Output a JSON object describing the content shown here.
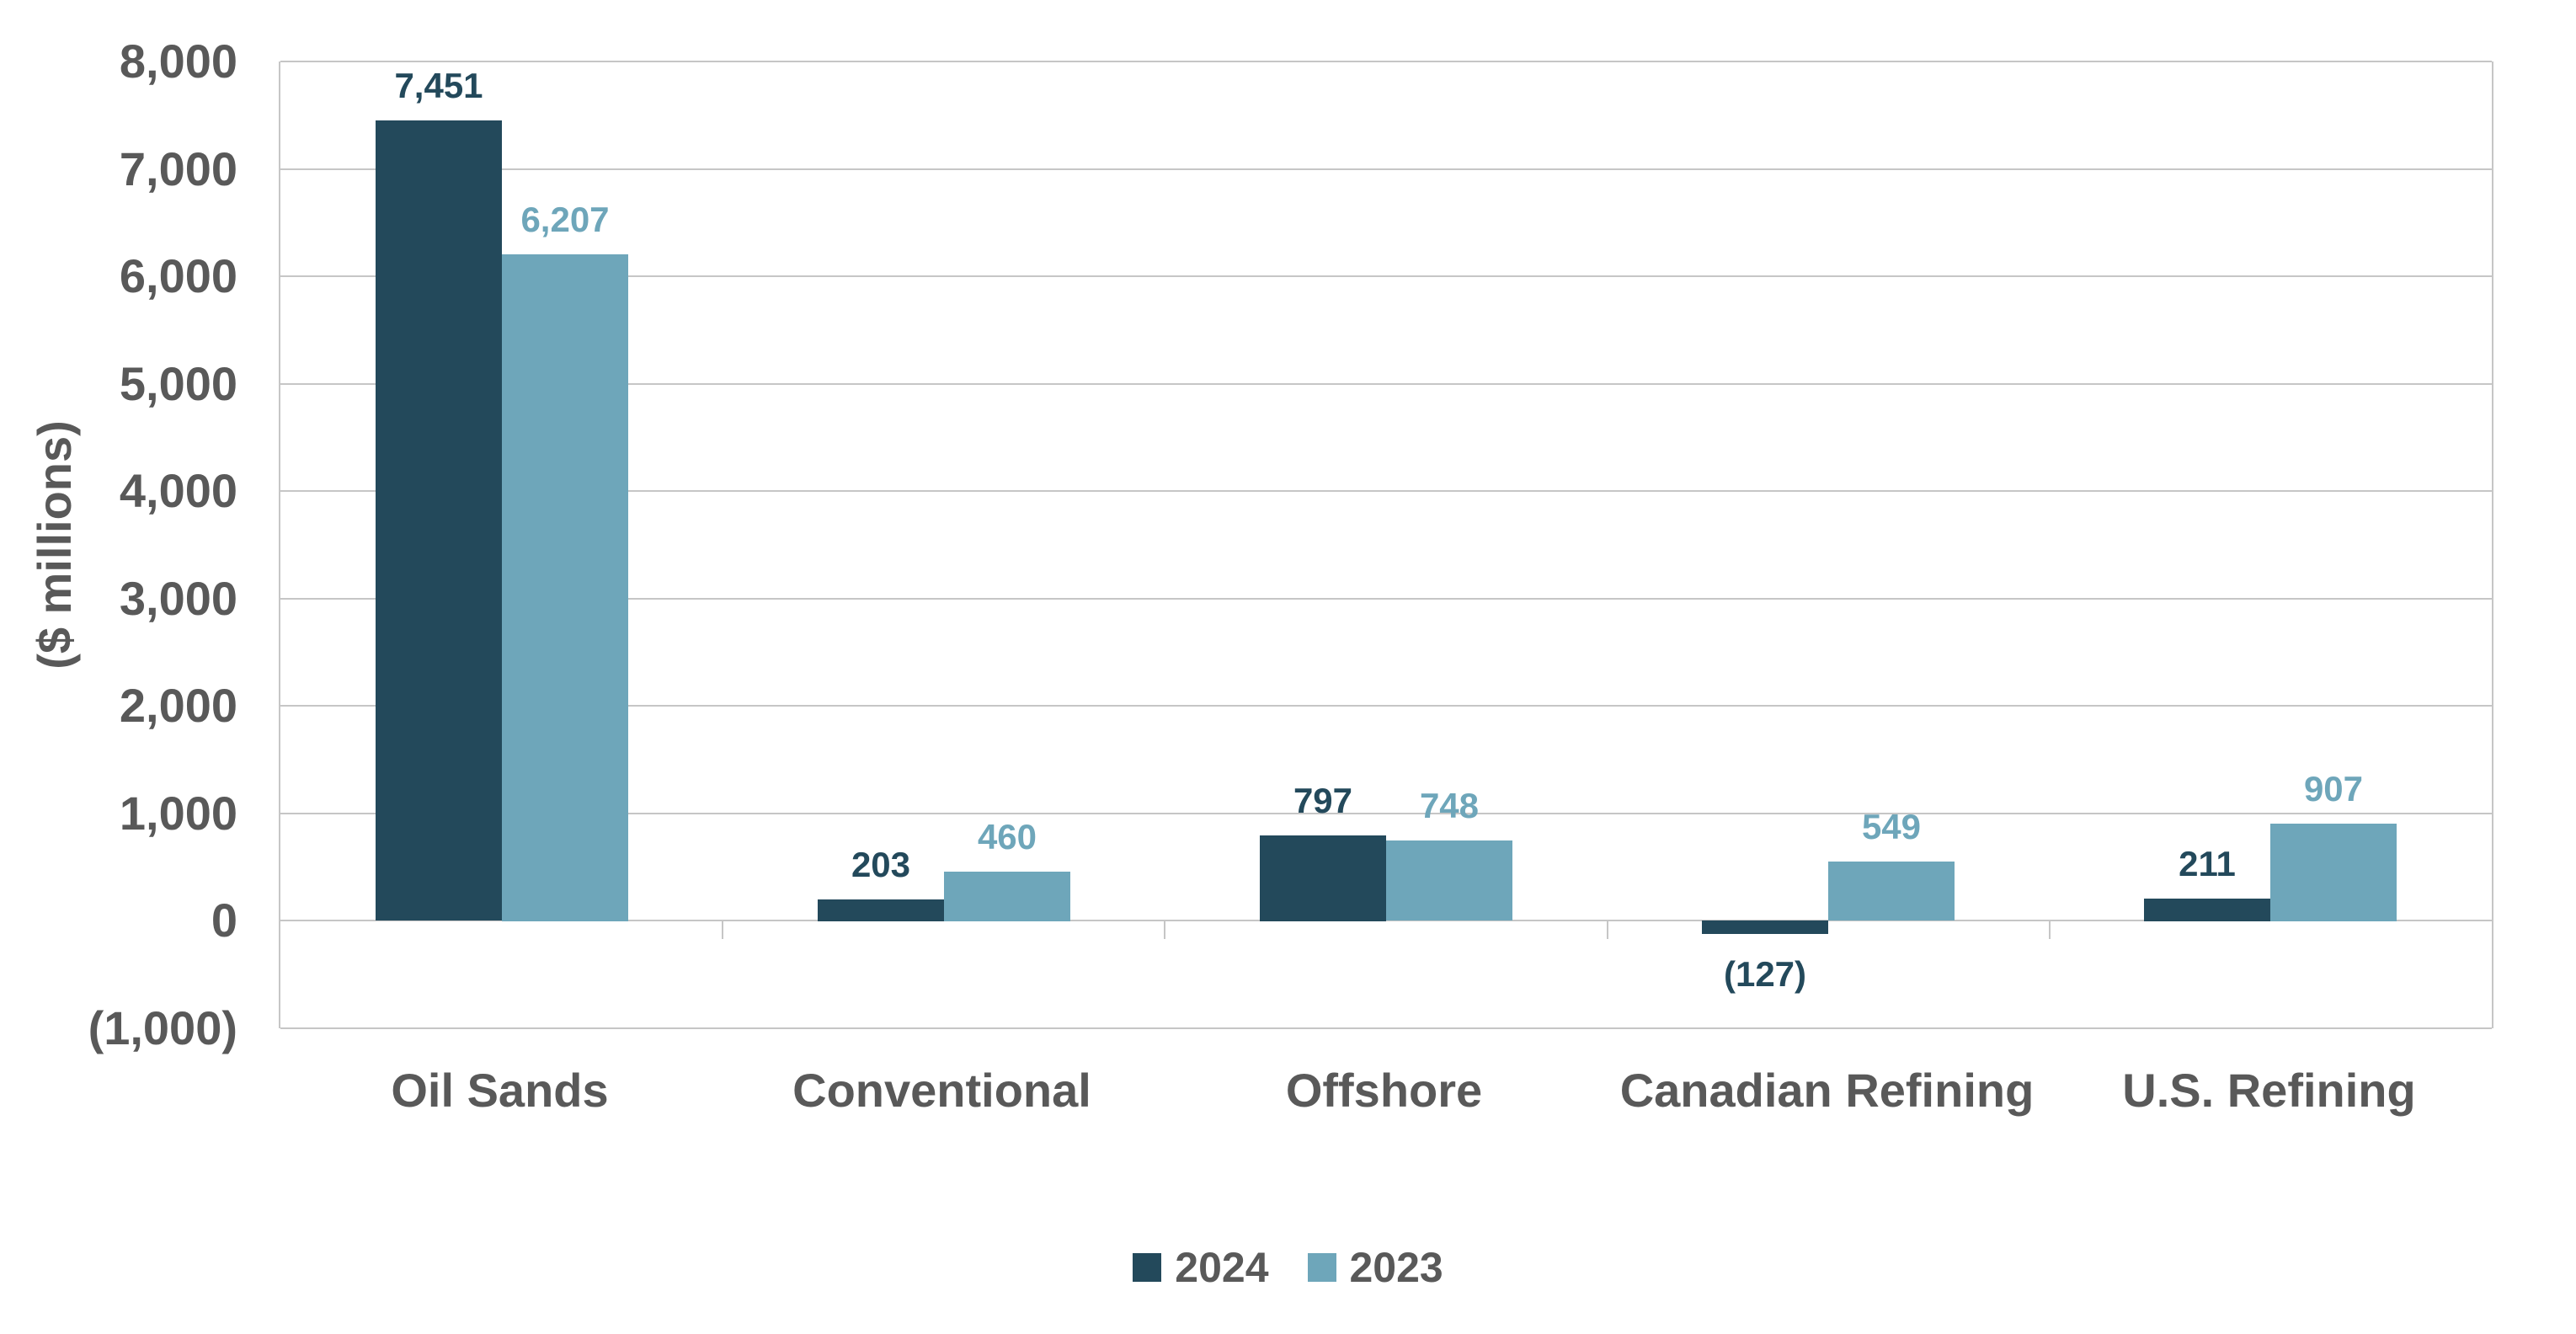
{
  "chart_data": {
    "type": "bar",
    "title": "",
    "ylabel": "($ millions)",
    "xlabel": "",
    "categories": [
      "Oil Sands",
      "Conventional",
      "Offshore",
      "Canadian Refining",
      "U.S. Refining"
    ],
    "series": [
      {
        "name": "2024",
        "color": "#23495b",
        "values": [
          7451,
          203,
          797,
          -127,
          211
        ],
        "labels": [
          "7,451",
          "203",
          "797",
          "(127)",
          "211"
        ]
      },
      {
        "name": "2023",
        "color": "#6ea6ba",
        "values": [
          6207,
          460,
          748,
          549,
          907
        ],
        "labels": [
          "6,207",
          "460",
          "748",
          "549",
          "907"
        ]
      }
    ],
    "ylim": [
      -1000,
      8000
    ],
    "ytick_step": 1000,
    "ytick_labels": [
      "8,000",
      "7,000",
      "6,000",
      "5,000",
      "4,000",
      "3,000",
      "2,000",
      "1,000",
      "0",
      "(1,000)"
    ],
    "grid": true,
    "legend_position": "bottom",
    "axis_text_color": "#595959",
    "grid_color": "#c6c6c6",
    "background_color": "#ffffff"
  }
}
